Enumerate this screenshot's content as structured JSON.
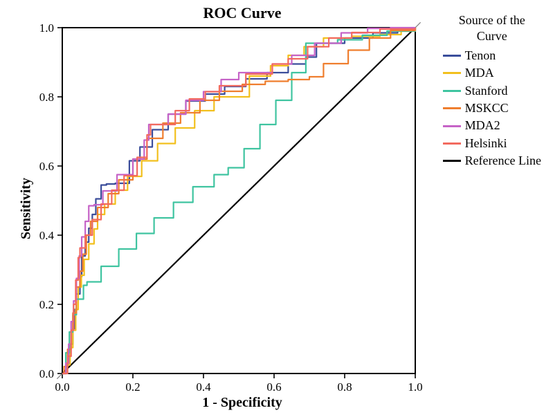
{
  "chart": {
    "type": "roc-line",
    "title": "ROC Curve",
    "xlabel": "1 - Specificity",
    "ylabel": "Sensitivity",
    "background_color": "#ffffff",
    "plot_border_color": "#000000",
    "plot_border_width": 2,
    "tick_color": "#000000",
    "line_width": 2.2,
    "xlim": [
      0.0,
      1.0
    ],
    "ylim": [
      0.0,
      1.0
    ],
    "xticks": [
      0.0,
      0.2,
      0.4,
      0.6,
      0.8,
      1.0
    ],
    "yticks": [
      0.0,
      0.2,
      0.4,
      0.6,
      0.8,
      1.0
    ],
    "tick_labels": [
      "0.0",
      "0.2",
      "0.4",
      "0.6",
      "0.8",
      "1.0"
    ],
    "tick_fontsize": 17,
    "title_fontsize": 22,
    "label_fontsize": 20,
    "legend": {
      "title_line1": "Source of the",
      "title_line2": "Curve",
      "position": "right-outside",
      "fontsize": 18
    },
    "reference_line": {
      "label": "Reference Line",
      "color": "#000000",
      "points": [
        [
          0,
          0
        ],
        [
          1,
          1
        ]
      ]
    },
    "diagonal_ticks": {
      "color": "#808080",
      "positions": [
        0.0,
        0.2,
        0.4,
        0.6,
        0.8,
        1.0
      ],
      "length": 0.015
    },
    "series": [
      {
        "name": "Tenon",
        "color": "#3b4e9b",
        "points": [
          [
            0.0,
            0.0
          ],
          [
            0.01,
            0.03
          ],
          [
            0.02,
            0.085
          ],
          [
            0.03,
            0.13
          ],
          [
            0.035,
            0.185
          ],
          [
            0.04,
            0.23
          ],
          [
            0.05,
            0.28
          ],
          [
            0.055,
            0.34
          ],
          [
            0.065,
            0.38
          ],
          [
            0.075,
            0.42
          ],
          [
            0.085,
            0.46
          ],
          [
            0.095,
            0.505
          ],
          [
            0.11,
            0.545
          ],
          [
            0.125,
            0.548
          ],
          [
            0.15,
            0.55
          ],
          [
            0.19,
            0.615
          ],
          [
            0.22,
            0.655
          ],
          [
            0.255,
            0.705
          ],
          [
            0.3,
            0.75
          ],
          [
            0.35,
            0.788
          ],
          [
            0.405,
            0.808
          ],
          [
            0.46,
            0.83
          ],
          [
            0.52,
            0.852
          ],
          [
            0.58,
            0.87
          ],
          [
            0.64,
            0.895
          ],
          [
            0.69,
            0.915
          ],
          [
            0.72,
            0.955
          ],
          [
            0.8,
            0.97
          ],
          [
            0.88,
            0.985
          ],
          [
            0.95,
            0.995
          ],
          [
            1.0,
            1.0
          ]
        ]
      },
      {
        "name": "MDA",
        "color": "#f2c01e",
        "points": [
          [
            0.0,
            0.0
          ],
          [
            0.012,
            0.025
          ],
          [
            0.022,
            0.075
          ],
          [
            0.03,
            0.125
          ],
          [
            0.038,
            0.185
          ],
          [
            0.045,
            0.25
          ],
          [
            0.054,
            0.284
          ],
          [
            0.062,
            0.33
          ],
          [
            0.075,
            0.375
          ],
          [
            0.09,
            0.418
          ],
          [
            0.1,
            0.46
          ],
          [
            0.12,
            0.49
          ],
          [
            0.15,
            0.53
          ],
          [
            0.185,
            0.57
          ],
          [
            0.225,
            0.615
          ],
          [
            0.27,
            0.665
          ],
          [
            0.32,
            0.71
          ],
          [
            0.375,
            0.76
          ],
          [
            0.43,
            0.8
          ],
          [
            0.475,
            0.8
          ],
          [
            0.53,
            0.86
          ],
          [
            0.59,
            0.89
          ],
          [
            0.64,
            0.92
          ],
          [
            0.685,
            0.945
          ],
          [
            0.74,
            0.97
          ],
          [
            0.82,
            0.975
          ],
          [
            0.9,
            0.98
          ],
          [
            0.96,
            0.99
          ],
          [
            1.0,
            1.0
          ]
        ]
      },
      {
        "name": "Stanford",
        "color": "#3fc4a0",
        "points": [
          [
            0.0,
            0.0
          ],
          [
            0.01,
            0.06
          ],
          [
            0.02,
            0.12
          ],
          [
            0.03,
            0.17
          ],
          [
            0.04,
            0.215
          ],
          [
            0.06,
            0.255
          ],
          [
            0.07,
            0.265
          ],
          [
            0.11,
            0.31
          ],
          [
            0.16,
            0.36
          ],
          [
            0.21,
            0.405
          ],
          [
            0.26,
            0.45
          ],
          [
            0.315,
            0.495
          ],
          [
            0.37,
            0.54
          ],
          [
            0.43,
            0.575
          ],
          [
            0.47,
            0.595
          ],
          [
            0.515,
            0.65
          ],
          [
            0.56,
            0.72
          ],
          [
            0.605,
            0.79
          ],
          [
            0.65,
            0.87
          ],
          [
            0.69,
            0.955
          ],
          [
            0.72,
            0.955
          ],
          [
            0.78,
            0.965
          ],
          [
            0.85,
            0.978
          ],
          [
            0.92,
            0.99
          ],
          [
            1.0,
            1.0
          ]
        ]
      },
      {
        "name": "MSKCC",
        "color": "#ef7e2e",
        "points": [
          [
            0.0,
            0.0
          ],
          [
            0.005,
            0.02
          ],
          [
            0.015,
            0.07
          ],
          [
            0.025,
            0.125
          ],
          [
            0.03,
            0.175
          ],
          [
            0.04,
            0.25
          ],
          [
            0.05,
            0.296
          ],
          [
            0.058,
            0.345
          ],
          [
            0.068,
            0.4
          ],
          [
            0.08,
            0.44
          ],
          [
            0.1,
            0.48
          ],
          [
            0.13,
            0.52
          ],
          [
            0.16,
            0.56
          ],
          [
            0.2,
            0.62
          ],
          [
            0.24,
            0.68
          ],
          [
            0.285,
            0.724
          ],
          [
            0.335,
            0.754
          ],
          [
            0.39,
            0.79
          ],
          [
            0.445,
            0.816
          ],
          [
            0.51,
            0.836
          ],
          [
            0.575,
            0.845
          ],
          [
            0.64,
            0.85
          ],
          [
            0.7,
            0.858
          ],
          [
            0.74,
            0.896
          ],
          [
            0.81,
            0.935
          ],
          [
            0.87,
            0.97
          ],
          [
            0.93,
            0.992
          ],
          [
            1.0,
            1.0
          ]
        ]
      },
      {
        "name": "MDA2",
        "color": "#c663c7",
        "points": [
          [
            0.0,
            0.0
          ],
          [
            0.01,
            0.03
          ],
          [
            0.018,
            0.085
          ],
          [
            0.025,
            0.15
          ],
          [
            0.032,
            0.21
          ],
          [
            0.04,
            0.275
          ],
          [
            0.048,
            0.34
          ],
          [
            0.055,
            0.395
          ],
          [
            0.065,
            0.44
          ],
          [
            0.075,
            0.485
          ],
          [
            0.09,
            0.488
          ],
          [
            0.115,
            0.528
          ],
          [
            0.155,
            0.575
          ],
          [
            0.2,
            0.62
          ],
          [
            0.232,
            0.675
          ],
          [
            0.245,
            0.72
          ],
          [
            0.255,
            0.72
          ],
          [
            0.3,
            0.75
          ],
          [
            0.35,
            0.79
          ],
          [
            0.4,
            0.815
          ],
          [
            0.45,
            0.85
          ],
          [
            0.5,
            0.87
          ],
          [
            0.542,
            0.87
          ],
          [
            0.595,
            0.895
          ],
          [
            0.65,
            0.92
          ],
          [
            0.715,
            0.955
          ],
          [
            0.79,
            0.985
          ],
          [
            0.865,
            0.998
          ],
          [
            0.93,
            1.0
          ],
          [
            1.0,
            1.0
          ]
        ]
      },
      {
        "name": "Helsinki",
        "color": "#f26a5f",
        "points": [
          [
            0.0,
            0.0
          ],
          [
            0.015,
            0.05
          ],
          [
            0.025,
            0.125
          ],
          [
            0.032,
            0.2
          ],
          [
            0.038,
            0.27
          ],
          [
            0.045,
            0.335
          ],
          [
            0.05,
            0.363
          ],
          [
            0.065,
            0.4
          ],
          [
            0.085,
            0.445
          ],
          [
            0.11,
            0.49
          ],
          [
            0.14,
            0.53
          ],
          [
            0.175,
            0.572
          ],
          [
            0.212,
            0.625
          ],
          [
            0.24,
            0.69
          ],
          [
            0.25,
            0.72
          ],
          [
            0.285,
            0.72
          ],
          [
            0.32,
            0.76
          ],
          [
            0.36,
            0.794
          ],
          [
            0.405,
            0.815
          ],
          [
            0.445,
            0.832
          ],
          [
            0.48,
            0.832
          ],
          [
            0.52,
            0.866
          ],
          [
            0.558,
            0.866
          ],
          [
            0.595,
            0.895
          ],
          [
            0.64,
            0.91
          ],
          [
            0.695,
            0.945
          ],
          [
            0.755,
            0.97
          ],
          [
            0.82,
            0.986
          ],
          [
            0.9,
            0.996
          ],
          [
            1.0,
            1.0
          ]
        ]
      }
    ]
  }
}
